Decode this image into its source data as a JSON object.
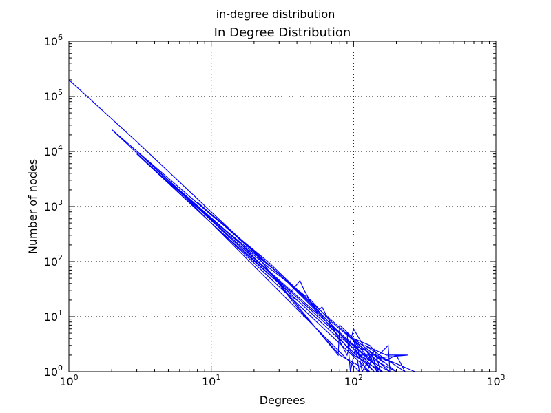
{
  "figure": {
    "suptitle": "in-degree distribution"
  },
  "chart_data": {
    "type": "line",
    "title": "In Degree Distribution",
    "xlabel": "Degrees",
    "ylabel": "Number of nodes",
    "xscale": "log",
    "yscale": "log",
    "xlim": [
      1,
      1000
    ],
    "ylim": [
      1,
      1000000
    ],
    "grid": true,
    "legend": "none",
    "series_color": "#0000ff",
    "x_ticks": [
      {
        "base": "10",
        "exp": "0"
      },
      {
        "base": "10",
        "exp": "1"
      },
      {
        "base": "10",
        "exp": "2"
      },
      {
        "base": "10",
        "exp": "3"
      }
    ],
    "y_ticks": [
      {
        "base": "10",
        "exp": "0"
      },
      {
        "base": "10",
        "exp": "1"
      },
      {
        "base": "10",
        "exp": "2"
      },
      {
        "base": "10",
        "exp": "3"
      },
      {
        "base": "10",
        "exp": "4"
      },
      {
        "base": "10",
        "exp": "5"
      },
      {
        "base": "10",
        "exp": "6"
      }
    ],
    "series": [
      {
        "points": [
          [
            1,
            200000
          ],
          [
            3,
            15000
          ],
          [
            10,
            800
          ],
          [
            20,
            150
          ],
          [
            40,
            15
          ],
          [
            80,
            2
          ],
          [
            130,
            1
          ],
          [
            2,
            25000
          ],
          [
            10,
            700
          ],
          [
            25,
            100
          ],
          [
            50,
            18
          ],
          [
            95,
            3
          ],
          [
            140,
            1
          ],
          [
            3,
            10000
          ],
          [
            10,
            600
          ],
          [
            30,
            60
          ],
          [
            60,
            10
          ],
          [
            100,
            2
          ],
          [
            160,
            1
          ],
          [
            3,
            9000
          ],
          [
            10,
            500
          ],
          [
            30,
            40
          ],
          [
            78,
            2
          ],
          [
            80,
            7
          ],
          [
            100,
            4
          ],
          [
            110,
            1
          ],
          [
            5,
            3000
          ],
          [
            15,
            250
          ],
          [
            40,
            20
          ],
          [
            35,
            25
          ],
          [
            42,
            45
          ],
          [
            45,
            30
          ],
          [
            55,
            12
          ],
          [
            60,
            15
          ],
          [
            90,
            2
          ],
          [
            100,
            6
          ],
          [
            150,
            1
          ],
          [
            4,
            5000
          ],
          [
            12,
            400
          ],
          [
            25,
            80
          ],
          [
            50,
            20
          ],
          [
            70,
            8
          ],
          [
            110,
            3
          ],
          [
            180,
            1
          ],
          [
            8,
            1200
          ],
          [
            18,
            200
          ],
          [
            40,
            30
          ],
          [
            75,
            6
          ],
          [
            120,
            2
          ],
          [
            200,
            1
          ],
          [
            100,
            4
          ],
          [
            130,
            3
          ],
          [
            150,
            2
          ],
          [
            175,
            3
          ],
          [
            180,
            1
          ],
          [
            110,
            2
          ],
          [
            140,
            2
          ],
          [
            160,
            1.5
          ],
          [
            200,
            2
          ],
          [
            230,
            1
          ],
          [
            120,
            3
          ],
          [
            170,
            2
          ],
          [
            240,
            2
          ],
          [
            150,
            1.8
          ],
          [
            200,
            1.4
          ],
          [
            270,
            1
          ],
          [
            100,
            3
          ],
          [
            125,
            1
          ],
          [
            140,
            2.5
          ],
          [
            155,
            1
          ],
          [
            90,
            5
          ],
          [
            95,
            1
          ],
          [
            105,
            3.5
          ],
          [
            115,
            1
          ],
          [
            135,
            2.2
          ],
          [
            145,
            1
          ]
        ]
      }
    ]
  }
}
